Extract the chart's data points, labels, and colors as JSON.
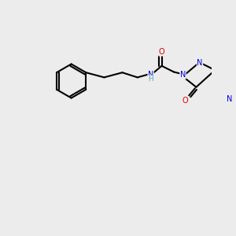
{
  "bg": "#ececec",
  "lw": 1.5,
  "fs": 7.0,
  "atom_colors": {
    "N": "#0000dd",
    "O": "#dd0000",
    "F": "#cc00cc",
    "H": "#5aadad",
    "C": "#000000"
  },
  "bonds": [],
  "xlim": [
    0,
    300
  ],
  "ylim": [
    0,
    300
  ]
}
